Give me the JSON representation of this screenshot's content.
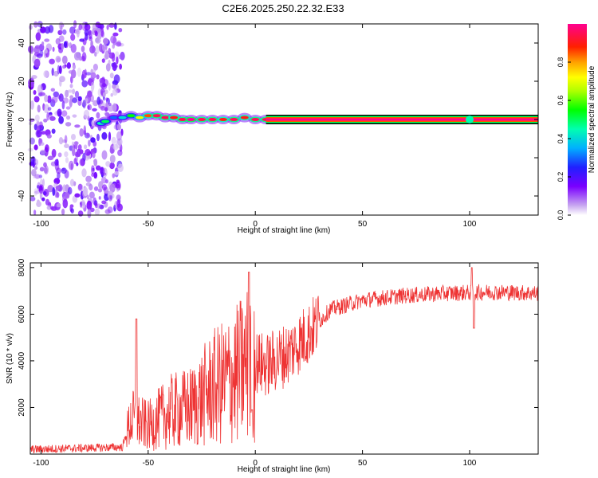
{
  "title": "C2E6.2025.250.22.32.E33",
  "chart_data": [
    {
      "type": "heatmap",
      "name": "spectrogram",
      "xlabel": "Height of straight line (km)",
      "ylabel": "Frequency (Hz)",
      "xlim": [
        -105,
        132
      ],
      "ylim": [
        -50,
        50
      ],
      "xticks": [
        -100,
        -50,
        0,
        50,
        100
      ],
      "yticks": [
        -40,
        -20,
        0,
        20,
        40
      ],
      "noise_region_x": [
        -105,
        -62
      ],
      "signal_band": [
        {
          "x": -72,
          "y": -2,
          "amp": 0.45
        },
        {
          "x": -70,
          "y": -1,
          "amp": 0.5
        },
        {
          "x": -66,
          "y": 1,
          "amp": 0.3
        },
        {
          "x": -62,
          "y": 1,
          "amp": 0.4
        },
        {
          "x": -58,
          "y": 2,
          "amp": 0.55
        },
        {
          "x": -54,
          "y": 1,
          "amp": 0.7
        },
        {
          "x": -50,
          "y": 2,
          "amp": 0.85
        },
        {
          "x": -46,
          "y": 2,
          "amp": 0.95
        },
        {
          "x": -42,
          "y": 1,
          "amp": 0.95
        },
        {
          "x": -38,
          "y": 1,
          "amp": 0.9
        },
        {
          "x": -34,
          "y": 0,
          "amp": 0.95
        },
        {
          "x": -30,
          "y": 0,
          "amp": 1.0
        },
        {
          "x": -25,
          "y": 0,
          "amp": 0.95
        },
        {
          "x": -20,
          "y": 0,
          "amp": 0.95
        },
        {
          "x": -15,
          "y": 0,
          "amp": 0.9
        },
        {
          "x": -10,
          "y": 0,
          "amp": 0.95
        },
        {
          "x": -5,
          "y": 1,
          "amp": 0.9
        },
        {
          "x": 0,
          "y": 0,
          "amp": 0.95
        },
        {
          "x": 5,
          "y": 0,
          "amp": 0.95
        }
      ],
      "line_x_range": [
        5,
        132
      ],
      "line_amp": 1.0,
      "line_freq": 0,
      "colorbar": {
        "label": "Normalized spectral amplitude",
        "ticks": [
          0.0,
          0.2,
          0.4,
          0.6,
          0.8
        ],
        "range": [
          0,
          1
        ]
      }
    },
    {
      "type": "line",
      "name": "snr",
      "xlabel": "Height of straight line (km)",
      "ylabel": "SNR (10 * v/v)",
      "xlim": [
        -105,
        132
      ],
      "ylim": [
        0,
        8200
      ],
      "xticks": [
        -100,
        -50,
        0,
        50,
        100
      ],
      "yticks": [
        2000,
        4000,
        6000,
        8000
      ],
      "color": "#ee3333",
      "trend": [
        {
          "x": -105,
          "y": 200
        },
        {
          "x": -62,
          "y": 300
        },
        {
          "x": -58,
          "y": 1500
        },
        {
          "x": -50,
          "y": 1200
        },
        {
          "x": -40,
          "y": 1800
        },
        {
          "x": -30,
          "y": 2000
        },
        {
          "x": -20,
          "y": 2800
        },
        {
          "x": -10,
          "y": 3300
        },
        {
          "x": -2,
          "y": 4000
        },
        {
          "x": 5,
          "y": 3800
        },
        {
          "x": 15,
          "y": 4300
        },
        {
          "x": 25,
          "y": 5200
        },
        {
          "x": 35,
          "y": 6200
        },
        {
          "x": 50,
          "y": 6600
        },
        {
          "x": 70,
          "y": 6800
        },
        {
          "x": 90,
          "y": 6900
        },
        {
          "x": 110,
          "y": 6950
        },
        {
          "x": 132,
          "y": 6900
        }
      ],
      "spikes": [
        {
          "x": -55.5,
          "y": 5800
        },
        {
          "x": -3,
          "y": 7800
        },
        {
          "x": -1.5,
          "y": 1900
        },
        {
          "x": 101,
          "y": 8000
        },
        {
          "x": 102,
          "y": 5400
        }
      ]
    }
  ]
}
